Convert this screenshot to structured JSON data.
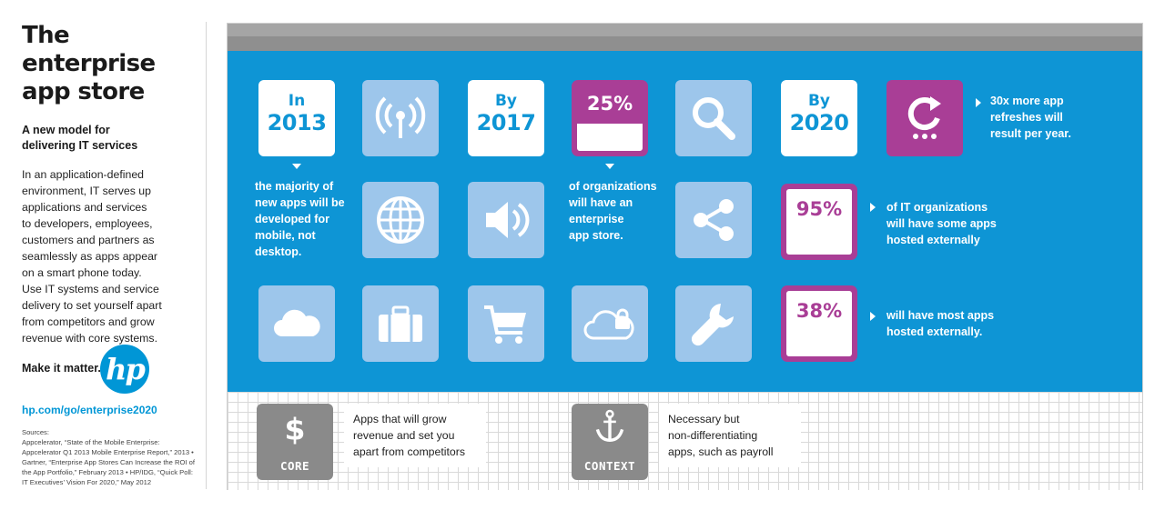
{
  "sidebar": {
    "title_l1": "The enterprise",
    "title_l2": "app store",
    "subtitle_l1": "A new model for",
    "subtitle_l2": "delivering IT services",
    "body": [
      "In an application-defined",
      "environment, IT serves up",
      "applications and services",
      "to developers, employees,",
      "customers and partners as",
      "seamlessly as apps appear",
      "on a smart phone today.",
      "Use IT systems and service",
      "delivery to set yourself apart",
      "from competitors and grow",
      "revenue with core systems."
    ],
    "tagline": "Make it matter.",
    "logo_text": "hp",
    "link": "hp.com/go/enterprise2020",
    "sources_label": "Sources:",
    "sources": [
      "Appcelerator, “State of the Mobile Enterprise:",
      "Appcelerator Q1 2013 Mobile Enterprise Report,” 2013 •",
      "Gartner, “Enterprise App Stores Can Increase the ROI of",
      "the App Portfolio,” February 2013 • HP/IDG, “Quick Poll:",
      "IT Executives’ Vision For 2020,” May 2012"
    ]
  },
  "stats": {
    "y2013": {
      "l1": "In",
      "l2": "2013",
      "text": [
        "the majority of",
        "new apps will be",
        "developed for",
        "mobile, not",
        "desktop."
      ]
    },
    "y2017": {
      "l1": "By",
      "l2": "2017"
    },
    "pct25": {
      "value": "25%",
      "text": [
        "of organizations",
        "will have an",
        "enterprise",
        "app store."
      ]
    },
    "y2020": {
      "l1": "By",
      "l2": "2020"
    },
    "refresh": {
      "text": [
        "30x more app",
        "refreshes will",
        "result per year."
      ]
    },
    "pct95": {
      "value": "95%",
      "text": [
        "of IT organizations",
        "will have some apps",
        "hosted externally"
      ]
    },
    "pct38": {
      "value": "38%",
      "text": [
        "will have most apps",
        "hosted externally."
      ]
    }
  },
  "legend": {
    "core": {
      "label": "CORE",
      "symbol": "$",
      "text": [
        "Apps that will grow",
        "revenue and set you",
        "apart from competitors"
      ]
    },
    "context": {
      "label": "CONTEXT",
      "text": [
        "Necessary but",
        "non-differentiating",
        "apps, such as payroll"
      ]
    }
  },
  "icons": [
    "antenna-icon",
    "magnifier-icon",
    "globe-icon",
    "speaker-icon",
    "share-icon",
    "cloud-icon",
    "briefcase-icon",
    "cart-icon",
    "cloud-lock-icon",
    "wrench-icon",
    "refresh-icon",
    "dollar-icon",
    "anchor-icon"
  ],
  "colors": {
    "blue": "#0e95d5",
    "tile": "#9dc6eb",
    "purple": "#a93e96",
    "gray": "#8a8a8a"
  }
}
